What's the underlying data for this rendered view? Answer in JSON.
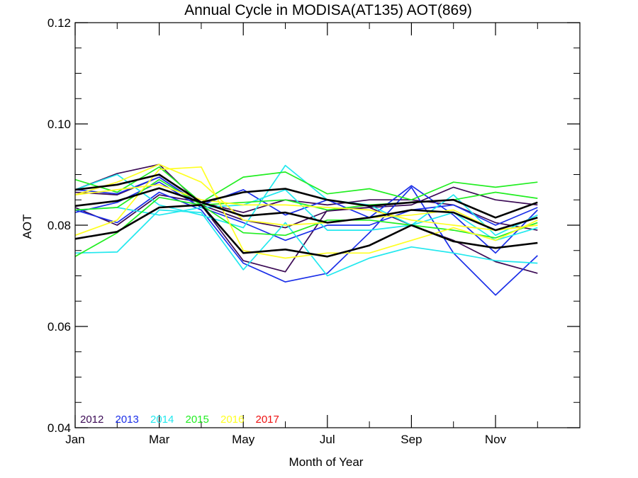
{
  "chart_data": {
    "type": "line",
    "title": "Annual Cycle in MODISA(AT135) AOT(869)",
    "xlabel": "Month of Year",
    "ylabel": "AOT",
    "xlim": [
      1,
      13
    ],
    "ylim": [
      0.04,
      0.12
    ],
    "x_ticks": [
      {
        "value": 1,
        "label": "Jan"
      },
      {
        "value": 3,
        "label": "Mar"
      },
      {
        "value": 5,
        "label": "May"
      },
      {
        "value": 7,
        "label": "Jul"
      },
      {
        "value": 9,
        "label": "Sep"
      },
      {
        "value": 11,
        "label": "Nov"
      }
    ],
    "y_ticks": [
      {
        "value": 0.04,
        "label": "0.04"
      },
      {
        "value": 0.06,
        "label": "0.06"
      },
      {
        "value": 0.08,
        "label": "0.08"
      },
      {
        "value": 0.1,
        "label": "0.10"
      },
      {
        "value": 0.12,
        "label": "0.12"
      }
    ],
    "legend": [
      {
        "label": "2012",
        "color": "#3b0a55"
      },
      {
        "label": "2013",
        "color": "#1a2ee8"
      },
      {
        "label": "2014",
        "color": "#22e8ee"
      },
      {
        "label": "2015",
        "color": "#22ee22"
      },
      {
        "label": "2016",
        "color": "#ffff22"
      },
      {
        "label": "2017",
        "color": "#ee1111"
      }
    ],
    "legend_position": "bottom-left",
    "x": [
      1,
      2,
      3,
      4,
      5,
      6,
      7,
      8,
      9,
      10,
      11,
      12
    ],
    "series": [
      {
        "color": "#3b0a55",
        "values": [
          0.087,
          0.0902,
          0.092,
          0.084,
          0.073,
          0.0708,
          0.083,
          0.0835,
          0.08,
          0.077,
          0.0728,
          0.0705
        ]
      },
      {
        "color": "#3b0a55",
        "values": [
          0.0865,
          0.086,
          0.0895,
          0.084,
          0.081,
          0.0795,
          0.0828,
          0.0835,
          0.084,
          0.0875,
          0.085,
          0.084
        ]
      },
      {
        "color": "#3b0a55",
        "values": [
          0.0835,
          0.08,
          0.086,
          0.0845,
          0.0825,
          0.085,
          0.084,
          0.085,
          0.085,
          0.084,
          0.0805,
          0.079
        ]
      },
      {
        "color": "#1a2ee8",
        "values": [
          0.083,
          0.0805,
          0.0865,
          0.083,
          0.0725,
          0.0688,
          0.0705,
          0.0785,
          0.0875,
          0.0745,
          0.0662,
          0.074
        ]
      },
      {
        "color": "#1a2ee8",
        "values": [
          0.087,
          0.0862,
          0.0895,
          0.084,
          0.087,
          0.082,
          0.085,
          0.0815,
          0.0878,
          0.082,
          0.0745,
          0.083
        ]
      },
      {
        "color": "#1a2ee8",
        "values": [
          0.0825,
          0.0845,
          0.0885,
          0.0835,
          0.0805,
          0.077,
          0.08,
          0.08,
          0.083,
          0.084,
          0.08,
          0.0835
        ]
      },
      {
        "color": "#22e8ee",
        "values": [
          0.0745,
          0.0747,
          0.083,
          0.0825,
          0.0712,
          0.0805,
          0.07,
          0.0735,
          0.0757,
          0.0745,
          0.073,
          0.0725
        ]
      },
      {
        "color": "#22e8ee",
        "values": [
          0.087,
          0.09,
          0.084,
          0.082,
          0.0795,
          0.0918,
          0.085,
          0.084,
          0.08,
          0.086,
          0.078,
          0.082
        ]
      },
      {
        "color": "#22e8ee",
        "values": [
          0.083,
          0.0835,
          0.082,
          0.0835,
          0.084,
          0.087,
          0.079,
          0.079,
          0.08,
          0.0825,
          0.077,
          0.0795
        ]
      },
      {
        "color": "#22ee22",
        "values": [
          0.0738,
          0.0785,
          0.0855,
          0.084,
          0.0785,
          0.078,
          0.081,
          0.081,
          0.08,
          0.079,
          0.0775,
          0.0805
        ]
      },
      {
        "color": "#22ee22",
        "values": [
          0.089,
          0.0865,
          0.0915,
          0.0845,
          0.0895,
          0.0905,
          0.0862,
          0.0872,
          0.085,
          0.0885,
          0.0875,
          0.0885
        ]
      },
      {
        "color": "#22ee22",
        "values": [
          0.083,
          0.0835,
          0.089,
          0.084,
          0.0845,
          0.085,
          0.083,
          0.084,
          0.0845,
          0.085,
          0.0865,
          0.0853
        ]
      },
      {
        "color": "#ffff22",
        "values": [
          0.078,
          0.081,
          0.091,
          0.0915,
          0.075,
          0.0735,
          0.0745,
          0.0745,
          0.077,
          0.0795,
          0.077,
          0.081
        ]
      },
      {
        "color": "#ffff22",
        "values": [
          0.086,
          0.0885,
          0.092,
          0.0885,
          0.081,
          0.08,
          0.0805,
          0.0815,
          0.082,
          0.083,
          0.079,
          0.08
        ]
      },
      {
        "color": "#ffff22",
        "values": [
          0.086,
          0.087,
          0.088,
          0.085,
          0.084,
          0.084,
          0.0835,
          0.083,
          0.081,
          0.08,
          0.079,
          0.08
        ]
      },
      {
        "color": "#000000",
        "values": [
          0.0773,
          0.0787,
          0.0835,
          0.084,
          0.0745,
          0.0752,
          0.0738,
          0.076,
          0.08,
          0.0768,
          0.0755,
          0.0765
        ]
      },
      {
        "color": "#000000",
        "values": [
          0.087,
          0.088,
          0.09,
          0.0845,
          0.0865,
          0.0872,
          0.085,
          0.0838,
          0.0845,
          0.085,
          0.0815,
          0.0845
        ]
      },
      {
        "color": "#000000",
        "values": [
          0.0838,
          0.0848,
          0.0873,
          0.0845,
          0.0818,
          0.0825,
          0.0805,
          0.0815,
          0.083,
          0.0825,
          0.079,
          0.0815
        ]
      }
    ]
  }
}
